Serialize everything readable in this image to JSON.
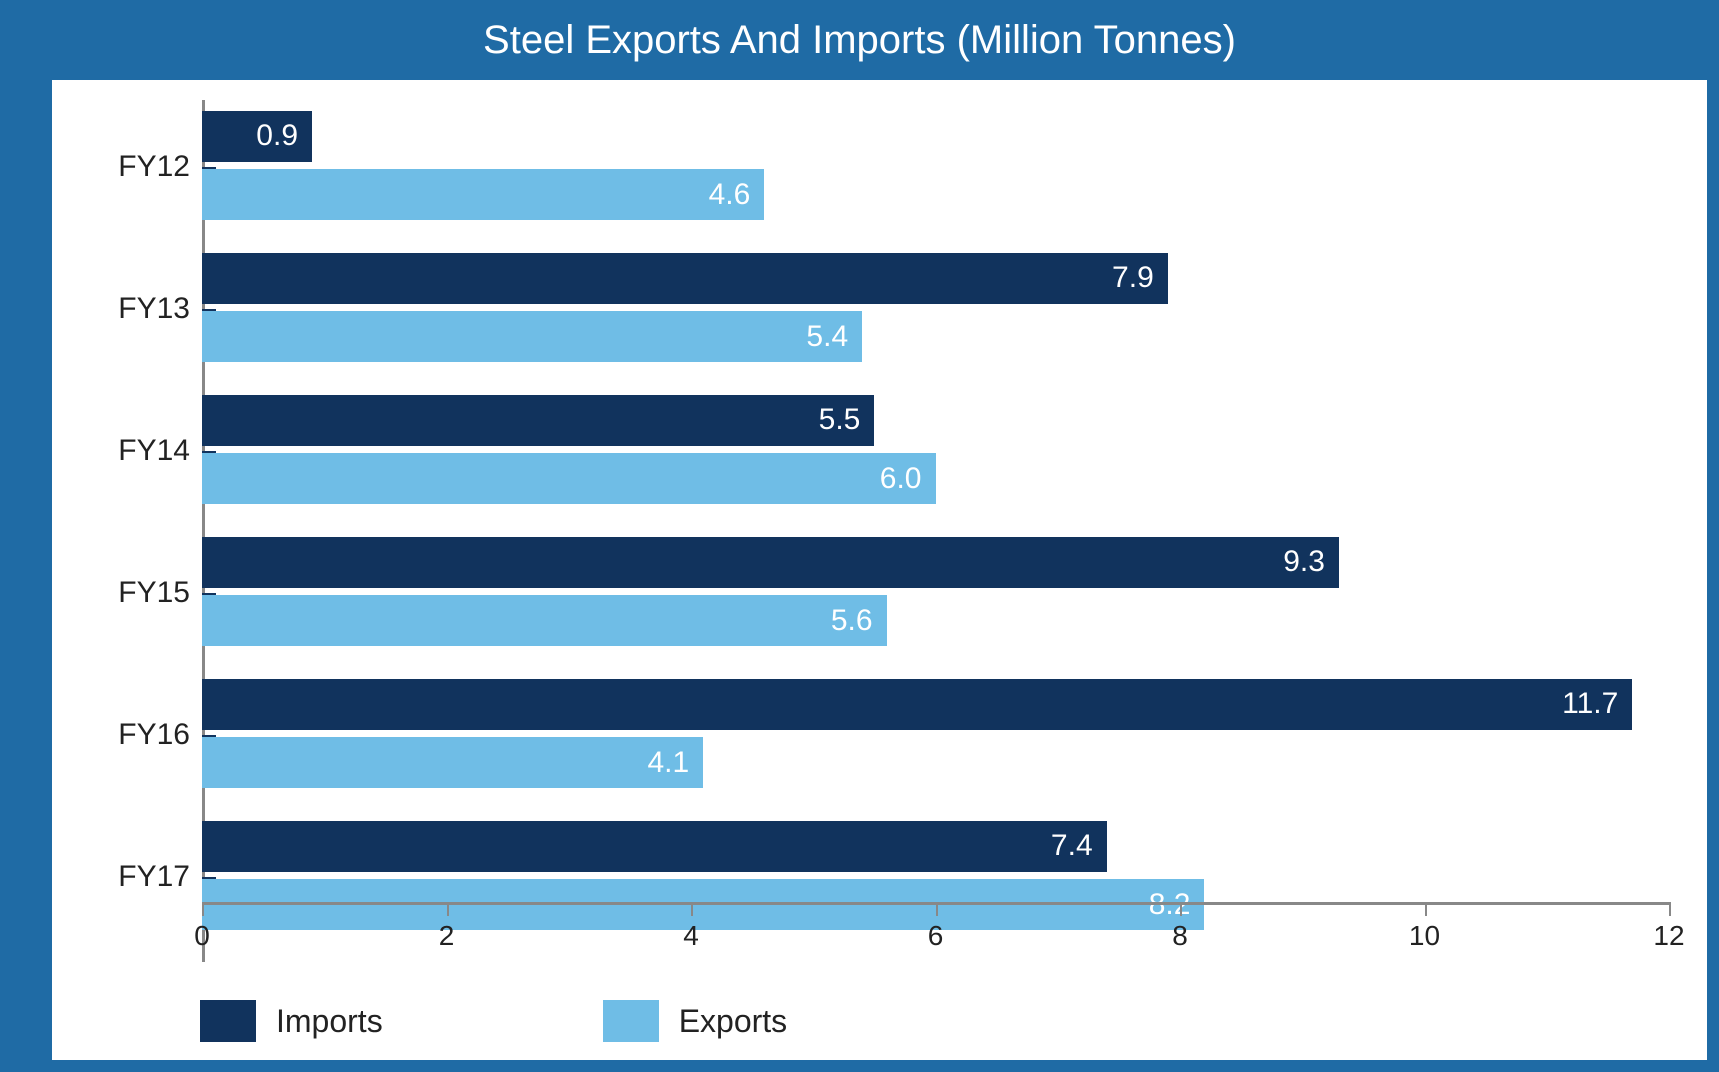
{
  "chart": {
    "type": "bar-horizontal-grouped",
    "title": "Steel Exports And Imports (Million Tonnes)",
    "title_fontsize": 40,
    "title_color": "#ffffff",
    "titlebar_color": "#1f6ba5",
    "frame_color": "#1f6ba5",
    "notch_color": "#0e3a5f",
    "background_color": "#ffffff",
    "categories": [
      "FY12",
      "FY13",
      "FY14",
      "FY15",
      "FY16",
      "FY17"
    ],
    "series": [
      {
        "name": "Imports",
        "color": "#11335d",
        "values": [
          0.9,
          7.9,
          5.5,
          9.3,
          11.7,
          7.4
        ]
      },
      {
        "name": "Exports",
        "color": "#6fbde6",
        "values": [
          4.6,
          5.4,
          6.0,
          5.6,
          4.1,
          8.2
        ]
      }
    ],
    "xlim": [
      0,
      12
    ],
    "xtick_step": 2,
    "xticks": [
      0,
      2,
      4,
      6,
      8,
      10,
      12
    ],
    "axis_color": "#888888",
    "value_label_color": "#ffffff",
    "value_label_fontsize": 30,
    "cat_label_color": "#222222",
    "cat_label_fontsize": 30,
    "tick_label_fontsize": 28,
    "bar_gap_pct": 4,
    "row_height_pct": 14,
    "legend": {
      "items": [
        {
          "label": "Imports",
          "color": "#11335d"
        },
        {
          "label": "Exports",
          "color": "#6fbde6"
        }
      ],
      "fontsize": 32
    }
  }
}
